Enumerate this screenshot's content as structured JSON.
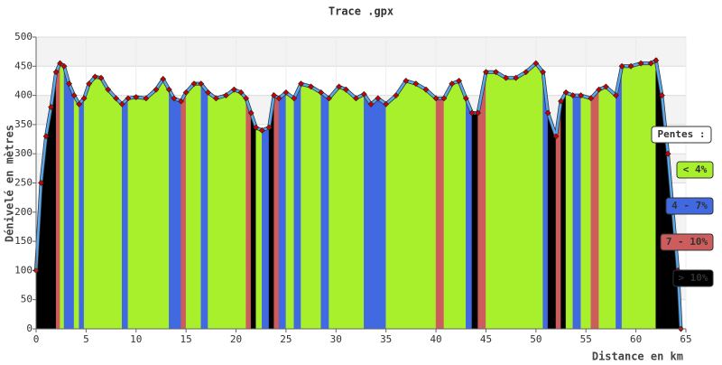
{
  "chart_data": {
    "type": "elevation-profile",
    "title": "Trace .gpx",
    "x_label": "Distance en km",
    "y_label": "Dénivelé en mètres",
    "x": [
      0.0,
      0.5,
      1.0,
      1.5,
      2.0,
      2.4,
      2.8,
      3.3,
      3.8,
      4.3,
      4.8,
      5.3,
      5.9,
      6.5,
      7.2,
      8.0,
      8.6,
      9.2,
      10.0,
      11.0,
      12.0,
      12.7,
      13.3,
      13.8,
      14.5,
      15.0,
      15.8,
      16.5,
      17.2,
      18.0,
      19.0,
      19.8,
      20.5,
      21.0,
      21.5,
      22.0,
      22.6,
      23.3,
      23.8,
      24.3,
      25.0,
      25.8,
      26.5,
      27.5,
      28.5,
      29.3,
      30.3,
      31.0,
      32.0,
      32.8,
      33.5,
      34.2,
      35.0,
      36.0,
      37.0,
      38.0,
      39.0,
      40.0,
      40.8,
      41.6,
      42.3,
      43.0,
      43.6,
      44.2,
      45.0,
      46.0,
      47.0,
      48.0,
      49.0,
      50.0,
      50.7,
      51.2,
      52.0,
      52.5,
      53.0,
      53.7,
      54.5,
      55.5,
      56.3,
      57.0,
      58.0,
      58.6,
      59.5,
      60.5,
      61.5,
      62.0,
      62.6,
      63.2,
      63.7,
      64.2,
      64.5
    ],
    "values": [
      100,
      250,
      330,
      380,
      440,
      455,
      450,
      420,
      400,
      385,
      395,
      420,
      432,
      430,
      410,
      395,
      385,
      395,
      397,
      395,
      410,
      428,
      410,
      395,
      390,
      405,
      420,
      420,
      405,
      395,
      400,
      410,
      405,
      395,
      370,
      345,
      340,
      345,
      400,
      395,
      405,
      395,
      420,
      415,
      405,
      395,
      415,
      410,
      395,
      402,
      385,
      395,
      385,
      400,
      425,
      420,
      410,
      395,
      395,
      420,
      425,
      395,
      370,
      370,
      440,
      440,
      430,
      430,
      440,
      455,
      440,
      370,
      330,
      390,
      405,
      400,
      400,
      395,
      410,
      415,
      400,
      450,
      450,
      455,
      455,
      460,
      400,
      300,
      200,
      100,
      0
    ],
    "colors": [
      "#000000",
      "#000000",
      "#000000",
      "#000000",
      "#cd5c5c",
      "#a8f02c",
      "#4169e1",
      "#4169e1",
      "#a8f02c",
      "#4169e1",
      "#a8f02c",
      "#a8f02c",
      "#a8f02c",
      "#a8f02c",
      "#a8f02c",
      "#a8f02c",
      "#4169e1",
      "#a8f02c",
      "#a8f02c",
      "#a8f02c",
      "#a8f02c",
      "#a8f02c",
      "#4169e1",
      "#4169e1",
      "#cd5c5c",
      "#a8f02c",
      "#a8f02c",
      "#4169e1",
      "#a8f02c",
      "#a8f02c",
      "#a8f02c",
      "#a8f02c",
      "#a8f02c",
      "#cd5c5c",
      "#000000",
      "#a8f02c",
      "#4169e1",
      "#000000",
      "#cd5c5c",
      "#4169e1",
      "#a8f02c",
      "#4169e1",
      "#a8f02c",
      "#a8f02c",
      "#4169e1",
      "#a8f02c",
      "#a8f02c",
      "#a8f02c",
      "#a8f02c",
      "#4169e1",
      "#4169e1",
      "#4169e1",
      "#a8f02c",
      "#a8f02c",
      "#a8f02c",
      "#a8f02c",
      "#a8f02c",
      "#cd5c5c",
      "#a8f02c",
      "#a8f02c",
      "#a8f02c",
      "#4169e1",
      "#000000",
      "#cd5c5c",
      "#a8f02c",
      "#a8f02c",
      "#a8f02c",
      "#a8f02c",
      "#a8f02c",
      "#a8f02c",
      "#4169e1",
      "#000000",
      "#cd5c5c",
      "#000000",
      "#a8f02c",
      "#4169e1",
      "#a8f02c",
      "#cd5c5c",
      "#a8f02c",
      "#a8f02c",
      "#4169e1",
      "#a8f02c",
      "#a8f02c",
      "#a8f02c",
      "#a8f02c",
      "#000000",
      "#000000",
      "#000000",
      "#000000",
      "#000000",
      "#000000"
    ],
    "line_color": "#5aa8ee",
    "marker_color": "#cc0000",
    "legend_title": "Pentes :",
    "legend": [
      {
        "name": "< 4%",
        "color": "#a8f02c"
      },
      {
        "name": "4 - 7%",
        "color": "#4169e1"
      },
      {
        "name": "7 - 10%",
        "color": "#cd5c5c"
      },
      {
        "name": "> 10%",
        "color": "#000000"
      }
    ],
    "xlim": [
      0,
      65
    ],
    "xticks": [
      0,
      5,
      10,
      15,
      20,
      25,
      30,
      35,
      40,
      45,
      50,
      55,
      60,
      65
    ],
    "ylim": [
      0,
      500
    ],
    "yticks": [
      0,
      50,
      100,
      150,
      200,
      250,
      300,
      350,
      400,
      450,
      500
    ],
    "grid": true
  }
}
